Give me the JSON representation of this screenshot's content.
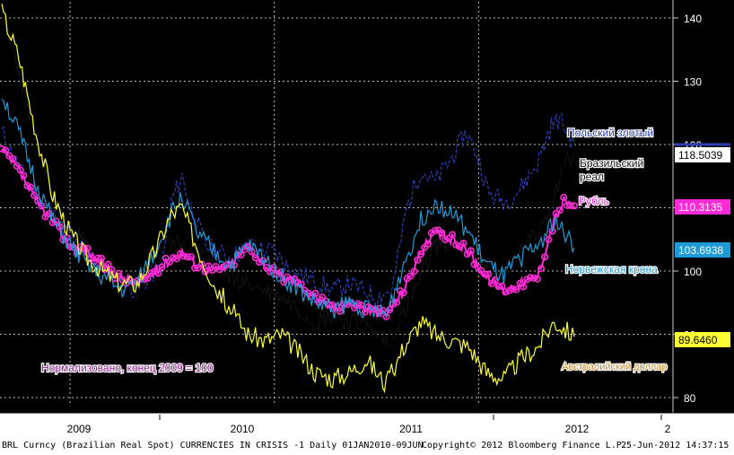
{
  "chart_data": {
    "type": "line",
    "title": "",
    "ylim": [
      78,
      145
    ],
    "y_ticks": [
      80,
      90,
      100,
      110,
      120,
      130,
      140
    ],
    "x_ticks": [
      "2009",
      "2010",
      "2011",
      "2012",
      "2"
    ],
    "grid": true,
    "x_range": [
      "2009-09-01",
      "2012-06-20"
    ],
    "series": [
      {
        "name": "Польский злотый",
        "color": "#2a3fb5",
        "dash": true,
        "last_value": null,
        "points": [
          [
            "2009-09-01",
            122
          ],
          [
            "2009-10-15",
            114
          ],
          [
            "2009-12-01",
            109
          ],
          [
            "2010-01-15",
            104
          ],
          [
            "2010-03-01",
            100
          ],
          [
            "2010-04-01",
            98
          ],
          [
            "2010-05-01",
            97
          ],
          [
            "2010-06-15",
            101
          ],
          [
            "2010-07-01",
            111
          ],
          [
            "2010-07-20",
            115
          ],
          [
            "2010-08-05",
            110
          ],
          [
            "2010-09-01",
            104
          ],
          [
            "2010-10-15",
            102
          ],
          [
            "2010-11-15",
            104
          ],
          [
            "2010-12-31",
            103
          ],
          [
            "2011-02-01",
            100
          ],
          [
            "2011-03-01",
            99
          ],
          [
            "2011-04-15",
            97
          ],
          [
            "2011-05-15",
            98
          ],
          [
            "2011-07-01",
            96
          ],
          [
            "2011-07-31",
            97
          ],
          [
            "2011-08-25",
            110
          ],
          [
            "2011-09-20",
            116
          ],
          [
            "2011-10-15",
            114
          ],
          [
            "2011-11-15",
            118
          ],
          [
            "2011-12-10",
            122
          ],
          [
            "2011-12-31",
            118
          ],
          [
            "2012-01-20",
            112
          ],
          [
            "2012-02-20",
            111
          ],
          [
            "2012-03-15",
            113
          ],
          [
            "2012-04-15",
            117
          ],
          [
            "2012-05-10",
            123
          ],
          [
            "2012-05-25",
            124
          ],
          [
            "2012-06-20",
            120
          ]
        ]
      },
      {
        "name": "Бразильский реал",
        "color": "#111111",
        "dash": false,
        "last_value": "118.5039",
        "points": [
          [
            "2009-09-01",
            140
          ],
          [
            "2009-10-01",
            132
          ],
          [
            "2009-11-01",
            120
          ],
          [
            "2009-12-01",
            112
          ],
          [
            "2010-01-01",
            107
          ],
          [
            "2010-02-01",
            104
          ],
          [
            "2010-03-01",
            101
          ],
          [
            "2010-04-01",
            98
          ],
          [
            "2010-05-01",
            97
          ],
          [
            "2010-06-01",
            101
          ],
          [
            "2010-07-01",
            103
          ],
          [
            "2010-07-20",
            105
          ],
          [
            "2010-08-15",
            103
          ],
          [
            "2010-09-15",
            101
          ],
          [
            "2010-10-15",
            99
          ],
          [
            "2010-11-15",
            98
          ],
          [
            "2010-12-15",
            97
          ],
          [
            "2011-01-15",
            96
          ],
          [
            "2011-02-15",
            94
          ],
          [
            "2011-03-15",
            92
          ],
          [
            "2011-04-15",
            93
          ],
          [
            "2011-05-15",
            92
          ],
          [
            "2011-06-15",
            91
          ],
          [
            "2011-07-20",
            89
          ],
          [
            "2011-08-20",
            93
          ],
          [
            "2011-09-20",
            99
          ],
          [
            "2011-10-15",
            104
          ],
          [
            "2011-11-15",
            105
          ],
          [
            "2011-12-15",
            103
          ],
          [
            "2012-01-15",
            100
          ],
          [
            "2012-02-15",
            98
          ],
          [
            "2012-03-15",
            103
          ],
          [
            "2012-04-15",
            106
          ],
          [
            "2012-05-15",
            112
          ],
          [
            "2012-06-01",
            117
          ],
          [
            "2012-06-20",
            118.5
          ]
        ]
      },
      {
        "name": "Рубль",
        "color": "#ff2bd6",
        "dash": false,
        "markers": true,
        "last_value": "110.3135",
        "points": [
          [
            "2009-09-01",
            119
          ],
          [
            "2009-10-01",
            116
          ],
          [
            "2009-11-01",
            111
          ],
          [
            "2009-12-01",
            108
          ],
          [
            "2010-01-01",
            104
          ],
          [
            "2010-02-01",
            103
          ],
          [
            "2010-03-01",
            101
          ],
          [
            "2010-04-01",
            99
          ],
          [
            "2010-05-01",
            98
          ],
          [
            "2010-06-01",
            100
          ],
          [
            "2010-07-01",
            102
          ],
          [
            "2010-07-20",
            103
          ],
          [
            "2010-08-15",
            101
          ],
          [
            "2010-09-15",
            100
          ],
          [
            "2010-10-15",
            101
          ],
          [
            "2010-11-15",
            104
          ],
          [
            "2010-12-15",
            101
          ],
          [
            "2011-01-15",
            99
          ],
          [
            "2011-02-15",
            98
          ],
          [
            "2011-03-15",
            96
          ],
          [
            "2011-04-15",
            94
          ],
          [
            "2011-05-15",
            95
          ],
          [
            "2011-06-15",
            94
          ],
          [
            "2011-07-20",
            93
          ],
          [
            "2011-08-20",
            97
          ],
          [
            "2011-09-20",
            103
          ],
          [
            "2011-10-15",
            106
          ],
          [
            "2011-11-15",
            105
          ],
          [
            "2011-12-15",
            103
          ],
          [
            "2012-01-15",
            99
          ],
          [
            "2012-02-15",
            97
          ],
          [
            "2012-03-15",
            98
          ],
          [
            "2012-04-15",
            99
          ],
          [
            "2012-05-15",
            108
          ],
          [
            "2012-06-01",
            111
          ],
          [
            "2012-06-20",
            110.3
          ]
        ]
      },
      {
        "name": "Норвежская крона",
        "color": "#1e9bd7",
        "dash": false,
        "last_value": "103.6938",
        "points": [
          [
            "2009-09-01",
            128
          ],
          [
            "2009-10-01",
            122
          ],
          [
            "2009-11-01",
            114
          ],
          [
            "2009-12-01",
            108
          ],
          [
            "2010-01-01",
            104
          ],
          [
            "2010-02-01",
            101
          ],
          [
            "2010-03-01",
            99
          ],
          [
            "2010-04-01",
            97
          ],
          [
            "2010-05-01",
            98
          ],
          [
            "2010-06-01",
            103
          ],
          [
            "2010-07-01",
            109
          ],
          [
            "2010-07-20",
            112
          ],
          [
            "2010-08-15",
            106
          ],
          [
            "2010-09-15",
            103
          ],
          [
            "2010-10-15",
            101
          ],
          [
            "2010-11-15",
            104
          ],
          [
            "2010-12-15",
            102
          ],
          [
            "2011-01-15",
            99
          ],
          [
            "2011-02-15",
            97
          ],
          [
            "2011-03-15",
            95
          ],
          [
            "2011-04-15",
            94
          ],
          [
            "2011-05-15",
            95
          ],
          [
            "2011-06-15",
            94
          ],
          [
            "2011-07-20",
            93
          ],
          [
            "2011-08-20",
            101
          ],
          [
            "2011-09-20",
            108
          ],
          [
            "2011-10-15",
            111
          ],
          [
            "2011-11-15",
            109
          ],
          [
            "2011-12-15",
            106
          ],
          [
            "2012-01-15",
            101
          ],
          [
            "2012-02-15",
            99
          ],
          [
            "2012-03-15",
            102
          ],
          [
            "2012-04-15",
            104
          ],
          [
            "2012-05-15",
            108
          ],
          [
            "2012-06-01",
            106
          ],
          [
            "2012-06-20",
            103.7
          ]
        ]
      },
      {
        "name": "Австралийский доллар",
        "color": "#ffff33",
        "dash": false,
        "last_value": "89.6460",
        "points": [
          [
            "2009-09-01",
            141
          ],
          [
            "2009-10-01",
            134
          ],
          [
            "2009-11-01",
            122
          ],
          [
            "2009-12-01",
            112
          ],
          [
            "2010-01-01",
            106
          ],
          [
            "2010-02-01",
            102
          ],
          [
            "2010-03-01",
            100
          ],
          [
            "2010-04-01",
            98
          ],
          [
            "2010-05-01",
            98
          ],
          [
            "2010-06-01",
            103
          ],
          [
            "2010-07-01",
            109
          ],
          [
            "2010-07-20",
            110
          ],
          [
            "2010-08-15",
            104
          ],
          [
            "2010-09-15",
            98
          ],
          [
            "2010-10-15",
            94
          ],
          [
            "2010-11-15",
            90
          ],
          [
            "2010-12-15",
            89
          ],
          [
            "2011-01-15",
            90
          ],
          [
            "2011-02-15",
            87
          ],
          [
            "2011-03-15",
            84
          ],
          [
            "2011-04-15",
            83
          ],
          [
            "2011-05-15",
            84
          ],
          [
            "2011-06-15",
            86
          ],
          [
            "2011-07-20",
            82
          ],
          [
            "2011-08-20",
            88
          ],
          [
            "2011-09-20",
            92
          ],
          [
            "2011-10-15",
            90
          ],
          [
            "2011-11-15",
            89
          ],
          [
            "2011-12-15",
            88
          ],
          [
            "2012-01-15",
            84
          ],
          [
            "2012-02-15",
            83
          ],
          [
            "2012-03-15",
            86
          ],
          [
            "2012-04-15",
            88
          ],
          [
            "2012-05-15",
            92
          ],
          [
            "2012-06-01",
            91
          ],
          [
            "2012-06-20",
            89.6
          ]
        ]
      }
    ],
    "annotations": {
      "normalized": "Нормализовано, конец 2009 = 100",
      "normalized_date": "2010-01-01"
    },
    "footer": {
      "left": "BRL Curncy (Brazilian Real Spot) CURRENCIES IN CRISIS -1  Daily 01JAN2010-09JUN",
      "center": "Copyright© 2012 Bloomberg Finance L.P.",
      "right": "25-Jun-2012 14:37:15"
    }
  }
}
